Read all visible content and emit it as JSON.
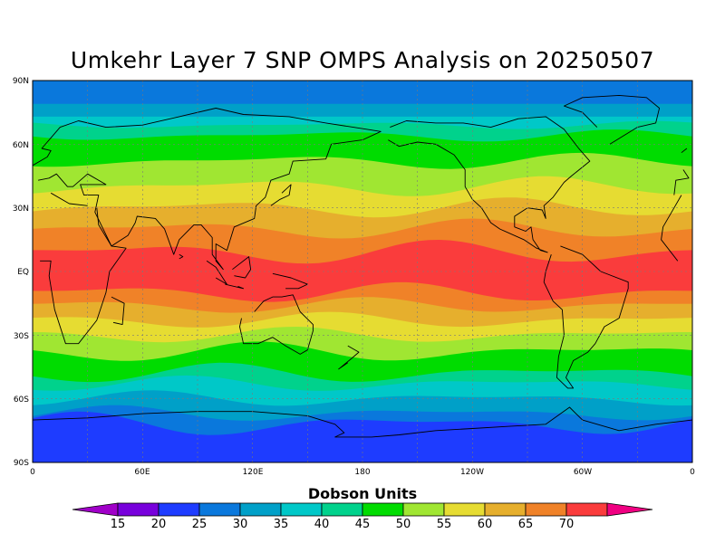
{
  "title": "Umkehr Layer 7 SNP OMPS Analysis on 20250507",
  "lat_labels": [
    "90N",
    "60N",
    "30N",
    "EQ",
    "30S",
    "60S",
    "90S"
  ],
  "lon_labels": [
    "0",
    "60E",
    "120E",
    "180",
    "120W",
    "60W",
    "0"
  ],
  "colorbar": {
    "title": "Dobson Units",
    "ticks": [
      "15",
      "20",
      "25",
      "30",
      "35",
      "40",
      "45",
      "50",
      "55",
      "60",
      "65",
      "70"
    ],
    "colors": [
      "#a000c8",
      "#7800dc",
      "#1e3cff",
      "#0a78dc",
      "#00a0c8",
      "#00c8c8",
      "#00d28c",
      "#00dc00",
      "#a0e632",
      "#e6dc32",
      "#e6af2d",
      "#f08228",
      "#fa3c3c",
      "#f00082"
    ]
  }
}
